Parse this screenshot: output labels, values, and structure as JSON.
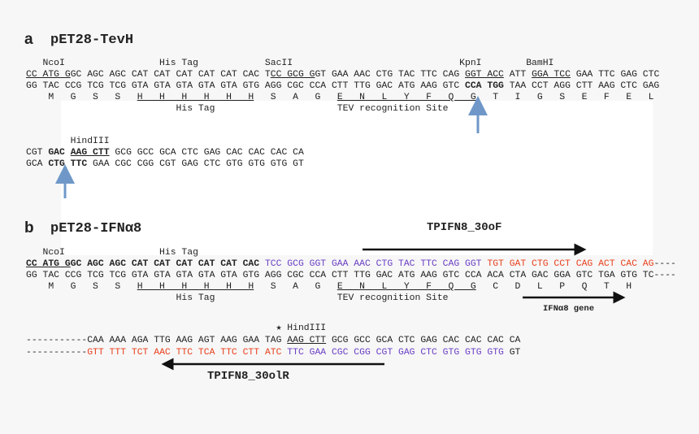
{
  "colors": {
    "purple": "#6a3fc4",
    "red": "#e8401c",
    "arrow_blue": "#6f98c8",
    "text": "#222222"
  },
  "panel_a": {
    "letter": "a",
    "title": "pET28-TevH",
    "lines": [
      [
        {
          "t": "   NcoI                 His Tag            SacII                              KpnI        BamHI"
        }
      ],
      [
        {
          "t": "CC ATG G",
          "c": "u"
        },
        {
          "t": "GC AGC AGC CAT CAT CAT CAT CAT CAC T"
        },
        {
          "t": "CC GCG G",
          "c": "u"
        },
        {
          "t": "GT GAA AAC CTG TAC TTC CAG "
        },
        {
          "t": "GGT ACC",
          "c": "u"
        },
        {
          "t": " ATT "
        },
        {
          "t": "GGA TCC",
          "c": "u"
        },
        {
          "t": " GAA TTC GAG CTC"
        }
      ],
      [
        {
          "t": "GG TAC CCG TCG TCG GTA GTA GTA GTA GTA GTG AGG CGC CCA CTT TTG GAC ATG AAG GTC "
        },
        {
          "t": "CCA TGG",
          "c": "b"
        },
        {
          "t": " TAA CCT AGG CTT AAG CTC GAG"
        }
      ],
      [
        {
          "t": "    M   G   S   S   "
        },
        {
          "t": "H   H   H   H   H   H",
          "c": "u"
        },
        {
          "t": "   S   A   G   "
        },
        {
          "t": "E   N   L   Y   F   Q   G",
          "c": "u"
        },
        {
          "t": "   T   I   G   S   E   F   E   L"
        }
      ],
      [
        {
          "t": "                           His Tag                      TEV recognition Site"
        }
      ]
    ],
    "lines2": [
      [
        {
          "t": "        HindIII"
        }
      ],
      [
        {
          "t": "CGT "
        },
        {
          "t": "GAC",
          "c": "b"
        },
        {
          "t": " "
        },
        {
          "t": "AAG CTT",
          "c": "b u"
        },
        {
          "t": " GCG GCC GCA CTC GAG CAC CAC CAC CA"
        }
      ],
      [
        {
          "t": "GCA "
        },
        {
          "t": "CTG TTC",
          "c": "b"
        },
        {
          "t": " GAA CGC CGG CGT GAG CTC GTG GTG GTG GT"
        }
      ]
    ]
  },
  "panel_b": {
    "letter": "b",
    "title": "pET28-IFNα8",
    "forward_primer": "TPIFN8_30oF",
    "reverse_primer": "TPIFN8_30olR",
    "gene_label": "IFNα8 gene",
    "lines": [
      [
        {
          "t": "   NcoI                 His Tag"
        }
      ],
      [
        {
          "t": "CC ATG G",
          "c": "b u"
        },
        {
          "t": "GC AGC AGC CAT CAT CAT CAT CAT CAC ",
          "c": "b"
        },
        {
          "t": "TCC GCG GGT GAA AAC CTG TAC TTC CAG GGT ",
          "c": "p"
        },
        {
          "t": "TGT GAT CTG CCT CAG ACT CAC AG",
          "c": "r"
        },
        {
          "t": "----"
        }
      ],
      [
        {
          "t": "GG TAC CCG TCG TCG GTA GTA GTA GTA GTA GTG AGG CGC CCA CTT TTG GAC ATG AAG GTC CCA ACA CTA GAC GGA GTC TGA GTG TC----"
        }
      ],
      [
        {
          "t": "    M   G   S   S   "
        },
        {
          "t": "H   H   H   H   H   H",
          "c": "u"
        },
        {
          "t": "   S   A   G   "
        },
        {
          "t": "E   N   L   Y   F   Q   G",
          "c": "u"
        },
        {
          "t": "   C   D   L   P   Q   T   H"
        }
      ],
      [
        {
          "t": "                           His Tag                      TEV recognition Site"
        }
      ]
    ],
    "lines2": [
      [
        {
          "t": "                                             ★ HindIII"
        }
      ],
      [
        {
          "t": "-----------CAA AAA AGA TTG AAG AGT AAG GAA TAG "
        },
        {
          "t": "AAG CTT",
          "c": "u"
        },
        {
          "t": " GCG GCC GCA CTC GAG CAC CAC CAC CA"
        }
      ],
      [
        {
          "t": "-----------"
        },
        {
          "t": "GTT TTT TCT AAC TTC TCA TTC CTT ATC ",
          "c": "r"
        },
        {
          "t": "TTC GAA CGC CGG CGT GAG CTC GTG GTG GTG",
          "c": "p"
        },
        {
          "t": " GT"
        }
      ]
    ]
  }
}
